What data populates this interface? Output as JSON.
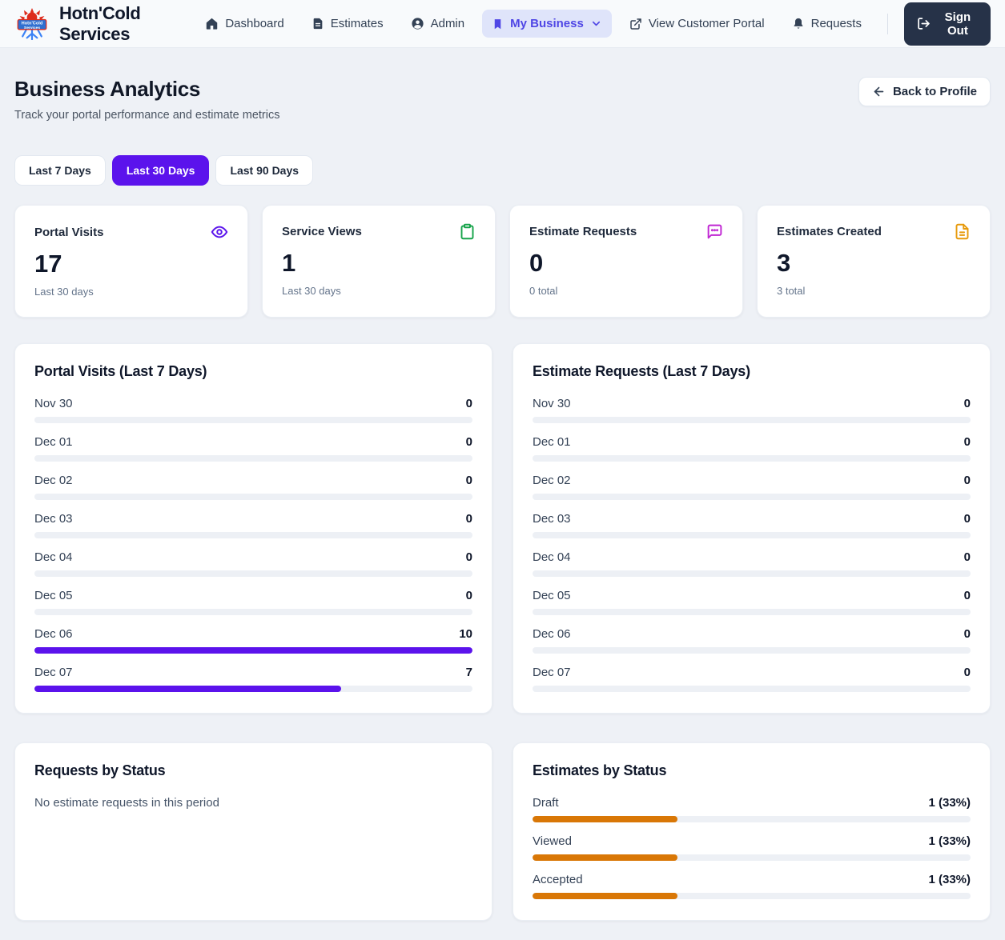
{
  "brand": {
    "name": "Hotn'Cold Services",
    "logo_line1": "Hotn'Cold",
    "logo_line2": "Services"
  },
  "nav": {
    "items": [
      {
        "label": "Dashboard",
        "icon": "home",
        "active": false,
        "chevron": false
      },
      {
        "label": "Estimates",
        "icon": "document",
        "active": false,
        "chevron": false
      },
      {
        "label": "Admin",
        "icon": "user-circle",
        "active": false,
        "chevron": false
      },
      {
        "label": "My Business",
        "icon": "bookmark",
        "active": true,
        "chevron": true
      },
      {
        "label": "View Customer Portal",
        "icon": "external-link",
        "active": false,
        "chevron": false
      },
      {
        "label": "Requests",
        "icon": "bell",
        "active": false,
        "chevron": false
      }
    ],
    "sign_out_label": "Sign Out"
  },
  "header": {
    "title": "Business Analytics",
    "subtitle": "Track your portal performance and estimate metrics",
    "back_button": "Back to Profile"
  },
  "time_range": {
    "options": [
      {
        "label": "Last 7 Days",
        "active": false
      },
      {
        "label": "Last 30 Days",
        "active": true
      },
      {
        "label": "Last 90 Days",
        "active": false
      }
    ]
  },
  "stat_cards": [
    {
      "title": "Portal Visits",
      "value": "17",
      "subtitle": "Last 30 days",
      "icon": "eye",
      "icon_color": "#5b13ec"
    },
    {
      "title": "Service Views",
      "value": "1",
      "subtitle": "Last 30 days",
      "icon": "clipboard",
      "icon_color": "#16a34a"
    },
    {
      "title": "Estimate Requests",
      "value": "0",
      "subtitle": "0 total",
      "icon": "chat-bubble",
      "icon_color": "#c026d3"
    },
    {
      "title": "Estimates Created",
      "value": "3",
      "subtitle": "3 total",
      "icon": "file-text",
      "icon_color": "#e79a0b"
    }
  ],
  "chart_data": [
    {
      "type": "bar",
      "orientation": "horizontal",
      "title": "Portal Visits (Last 7 Days)",
      "categories": [
        "Nov 30",
        "Dec 01",
        "Dec 02",
        "Dec 03",
        "Dec 04",
        "Dec 05",
        "Dec 06",
        "Dec 07"
      ],
      "values": [
        0,
        0,
        0,
        0,
        0,
        0,
        10,
        7
      ],
      "value_labels": [
        "0",
        "0",
        "0",
        "0",
        "0",
        "0",
        "10",
        "7"
      ],
      "max": 10,
      "bar_color": "#5b13ec",
      "track_color": "#edf0f5",
      "grid": false,
      "legend": false
    },
    {
      "type": "bar",
      "orientation": "horizontal",
      "title": "Estimate Requests (Last 7 Days)",
      "categories": [
        "Nov 30",
        "Dec 01",
        "Dec 02",
        "Dec 03",
        "Dec 04",
        "Dec 05",
        "Dec 06",
        "Dec 07"
      ],
      "values": [
        0,
        0,
        0,
        0,
        0,
        0,
        0,
        0
      ],
      "value_labels": [
        "0",
        "0",
        "0",
        "0",
        "0",
        "0",
        "0",
        "0"
      ],
      "max": 0,
      "bar_color": "#5b13ec",
      "track_color": "#edf0f5",
      "grid": false,
      "legend": false
    },
    {
      "type": "bar",
      "orientation": "horizontal",
      "title": "Requests by Status",
      "categories": [],
      "values": [],
      "value_labels": [],
      "empty_message": "No estimate requests in this period",
      "bar_color": "#d97706",
      "track_color": "#edf0f5",
      "grid": false,
      "legend": false
    },
    {
      "type": "bar",
      "orientation": "horizontal",
      "title": "Estimates by Status",
      "categories": [
        "Draft",
        "Viewed",
        "Accepted"
      ],
      "values": [
        1,
        1,
        1
      ],
      "value_labels": [
        "1 (33%)",
        "1 (33%)",
        "1 (33%)"
      ],
      "percentages": [
        33,
        33,
        33
      ],
      "bar_color": "#d97706",
      "track_color": "#edf0f5",
      "grid": false,
      "legend": false
    }
  ]
}
